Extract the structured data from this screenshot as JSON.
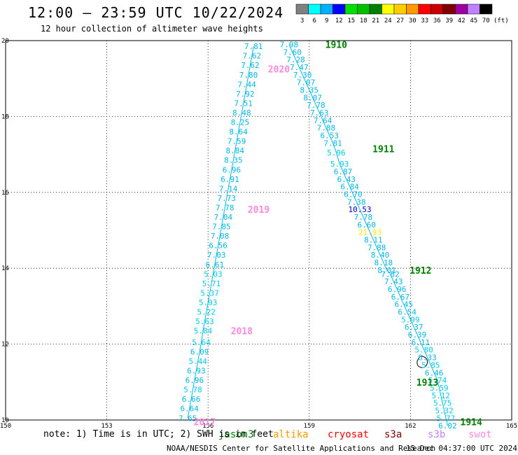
{
  "header": {
    "title": "12:00 — 23:59 UTC 10/22/2024",
    "subtitle": "12 hour collection of altimeter wave heights"
  },
  "colorbar": {
    "unit_label": "(ft)",
    "bins": [
      {
        "label": "3",
        "color": "#808080"
      },
      {
        "label": "6",
        "color": "#00ffff"
      },
      {
        "label": "9",
        "color": "#00b0ff"
      },
      {
        "label": "12",
        "color": "#0000ff"
      },
      {
        "label": "15",
        "color": "#00e000"
      },
      {
        "label": "18",
        "color": "#00c000"
      },
      {
        "label": "21",
        "color": "#008000"
      },
      {
        "label": "24",
        "color": "#ffff00"
      },
      {
        "label": "27",
        "color": "#ffcc00"
      },
      {
        "label": "30",
        "color": "#ff9900"
      },
      {
        "label": "33",
        "color": "#ff0000"
      },
      {
        "label": "36",
        "color": "#c80000"
      },
      {
        "label": "39",
        "color": "#800000"
      },
      {
        "label": "42",
        "color": "#a000a0"
      },
      {
        "label": "45",
        "color": "#c080ff"
      },
      {
        "label": "70",
        "color": "#000000"
      }
    ]
  },
  "axes": {
    "x_ticks": [
      "150",
      "153",
      "156",
      "159",
      "162",
      "165"
    ],
    "y_ticks": [
      "10",
      "12",
      "14",
      "16",
      "18",
      "20"
    ],
    "xlim": [
      150,
      165
    ],
    "ylim": [
      10,
      20
    ]
  },
  "tracks": [
    {
      "id": "2017-2020",
      "line_color": "#00b8e8",
      "points": [
        {
          "lon": 155.4,
          "lat": 10.05,
          "v": "7.65",
          "c": "#00b8e8"
        },
        {
          "lon": 155.45,
          "lat": 10.3,
          "v": "6.64",
          "c": "#00b8e8"
        },
        {
          "lon": 155.5,
          "lat": 10.55,
          "v": "6.66",
          "c": "#00b8e8"
        },
        {
          "lon": 155.55,
          "lat": 10.8,
          "v": "5.78",
          "c": "#00ccee"
        },
        {
          "lon": 155.6,
          "lat": 11.05,
          "v": "6.96",
          "c": "#00b8e8"
        },
        {
          "lon": 155.65,
          "lat": 11.3,
          "v": "6.93",
          "c": "#00b8e8"
        },
        {
          "lon": 155.7,
          "lat": 11.55,
          "v": "5.44",
          "c": "#00ccee"
        },
        {
          "lon": 155.75,
          "lat": 11.8,
          "v": "6.09",
          "c": "#00b8e8"
        },
        {
          "lon": 155.8,
          "lat": 12.05,
          "v": "5.64",
          "c": "#00ccee"
        },
        {
          "lon": 155.85,
          "lat": 12.35,
          "v": "5.84",
          "c": "#00ccee"
        },
        {
          "lon": 155.9,
          "lat": 12.6,
          "v": "5.63",
          "c": "#00ccee"
        },
        {
          "lon": 155.95,
          "lat": 12.85,
          "v": "5.22",
          "c": "#00ccee"
        },
        {
          "lon": 156.0,
          "lat": 13.1,
          "v": "5.93",
          "c": "#00ccee"
        },
        {
          "lon": 156.05,
          "lat": 13.35,
          "v": "5.37",
          "c": "#00ccee"
        },
        {
          "lon": 156.1,
          "lat": 13.6,
          "v": "5.71",
          "c": "#00ccee"
        },
        {
          "lon": 156.15,
          "lat": 13.85,
          "v": "5.03",
          "c": "#00ccee"
        },
        {
          "lon": 156.2,
          "lat": 14.1,
          "v": "6.61",
          "c": "#00b8e8"
        },
        {
          "lon": 156.25,
          "lat": 14.35,
          "v": "7.03",
          "c": "#00b8e8"
        },
        {
          "lon": 156.3,
          "lat": 14.6,
          "v": "6.56",
          "c": "#00b8e8"
        },
        {
          "lon": 156.35,
          "lat": 14.85,
          "v": "7.08",
          "c": "#00b8e8"
        },
        {
          "lon": 156.4,
          "lat": 15.1,
          "v": "7.85",
          "c": "#00b8e8"
        },
        {
          "lon": 156.45,
          "lat": 15.35,
          "v": "7.04",
          "c": "#00b8e8"
        },
        {
          "lon": 156.5,
          "lat": 15.6,
          "v": "7.78",
          "c": "#00b8e8"
        },
        {
          "lon": 156.55,
          "lat": 15.85,
          "v": "7.73",
          "c": "#00b8e8"
        },
        {
          "lon": 156.6,
          "lat": 16.1,
          "v": "7.14",
          "c": "#00b8e8"
        },
        {
          "lon": 156.65,
          "lat": 16.35,
          "v": "6.91",
          "c": "#00b8e8"
        },
        {
          "lon": 156.7,
          "lat": 16.6,
          "v": "6.96",
          "c": "#00b8e8"
        },
        {
          "lon": 156.75,
          "lat": 16.85,
          "v": "8.35",
          "c": "#00b8e8"
        },
        {
          "lon": 156.8,
          "lat": 17.1,
          "v": "8.84",
          "c": "#00b8e8"
        },
        {
          "lon": 156.85,
          "lat": 17.35,
          "v": "7.59",
          "c": "#00b8e8"
        },
        {
          "lon": 156.9,
          "lat": 17.6,
          "v": "8.64",
          "c": "#00b8e8"
        },
        {
          "lon": 156.95,
          "lat": 17.85,
          "v": "8.25",
          "c": "#00b8e8"
        },
        {
          "lon": 157.0,
          "lat": 18.1,
          "v": "8.48",
          "c": "#00b8e8"
        },
        {
          "lon": 157.05,
          "lat": 18.35,
          "v": "7.51",
          "c": "#00b8e8"
        },
        {
          "lon": 157.1,
          "lat": 18.6,
          "v": "7.92",
          "c": "#00b8e8"
        },
        {
          "lon": 157.15,
          "lat": 18.85,
          "v": "7.44",
          "c": "#00b8e8"
        },
        {
          "lon": 157.2,
          "lat": 19.1,
          "v": "7.80",
          "c": "#00b8e8"
        },
        {
          "lon": 157.25,
          "lat": 19.35,
          "v": "7.62",
          "c": "#00b8e8"
        },
        {
          "lon": 157.3,
          "lat": 19.6,
          "v": "7.62",
          "c": "#00b8e8"
        },
        {
          "lon": 157.35,
          "lat": 19.85,
          "v": "7.81",
          "c": "#00b8e8"
        }
      ]
    },
    {
      "id": "1910-1914",
      "line_color": "#00b8e8",
      "points": [
        {
          "lon": 158.4,
          "lat": 19.9,
          "v": "7.98",
          "c": "#00b8e8"
        },
        {
          "lon": 158.5,
          "lat": 19.7,
          "v": "7.60",
          "c": "#00b8e8"
        },
        {
          "lon": 158.6,
          "lat": 19.5,
          "v": "7.28",
          "c": "#00b8e8"
        },
        {
          "lon": 158.7,
          "lat": 19.3,
          "v": "7.47",
          "c": "#00b8e8"
        },
        {
          "lon": 158.8,
          "lat": 19.1,
          "v": "7.30",
          "c": "#00b8e8"
        },
        {
          "lon": 158.9,
          "lat": 18.9,
          "v": "7.07",
          "c": "#00b8e8"
        },
        {
          "lon": 159.0,
          "lat": 18.7,
          "v": "8.35",
          "c": "#00b8e8"
        },
        {
          "lon": 159.1,
          "lat": 18.5,
          "v": "8.07",
          "c": "#00b8e8"
        },
        {
          "lon": 159.2,
          "lat": 18.3,
          "v": "7.78",
          "c": "#00b8e8"
        },
        {
          "lon": 159.3,
          "lat": 18.1,
          "v": "7.63",
          "c": "#00b8e8"
        },
        {
          "lon": 159.4,
          "lat": 17.9,
          "v": "7.64",
          "c": "#00b8e8"
        },
        {
          "lon": 159.5,
          "lat": 17.7,
          "v": "7.88",
          "c": "#00b8e8"
        },
        {
          "lon": 159.6,
          "lat": 17.5,
          "v": "6.53",
          "c": "#00b8e8"
        },
        {
          "lon": 159.7,
          "lat": 17.3,
          "v": "7.81",
          "c": "#00b8e8"
        },
        {
          "lon": 159.8,
          "lat": 17.05,
          "v": "5.96",
          "c": "#00ccee"
        },
        {
          "lon": 159.9,
          "lat": 16.75,
          "v": "5.93",
          "c": "#00ccee"
        },
        {
          "lon": 160.0,
          "lat": 16.55,
          "v": "6.87",
          "c": "#00b8e8"
        },
        {
          "lon": 160.1,
          "lat": 16.35,
          "v": "6.43",
          "c": "#00b8e8"
        },
        {
          "lon": 160.2,
          "lat": 16.15,
          "v": "6.84",
          "c": "#00b8e8"
        },
        {
          "lon": 160.3,
          "lat": 15.95,
          "v": "6.70",
          "c": "#00b8e8"
        },
        {
          "lon": 160.4,
          "lat": 15.75,
          "v": "7.38",
          "c": "#00b8e8"
        },
        {
          "lon": 160.5,
          "lat": 15.55,
          "v": "10.53",
          "c": "#0000cc"
        },
        {
          "lon": 160.6,
          "lat": 15.35,
          "v": "7.78",
          "c": "#00b8e8"
        },
        {
          "lon": 160.7,
          "lat": 15.15,
          "v": "6.60",
          "c": "#00b8e8"
        },
        {
          "lon": 160.8,
          "lat": 14.95,
          "v": "21.93",
          "c": "#ffe800"
        },
        {
          "lon": 160.9,
          "lat": 14.75,
          "v": "8.11",
          "c": "#00b8e8"
        },
        {
          "lon": 161.0,
          "lat": 14.55,
          "v": "7.88",
          "c": "#00b8e8"
        },
        {
          "lon": 161.1,
          "lat": 14.35,
          "v": "8.40",
          "c": "#00b8e8"
        },
        {
          "lon": 161.2,
          "lat": 14.15,
          "v": "8.18",
          "c": "#00b8e8"
        },
        {
          "lon": 161.3,
          "lat": 13.95,
          "v": "8.01",
          "c": "#00b8e8"
        },
        {
          "lon": 161.4,
          "lat": 13.85,
          "v": "7.82",
          "c": "#00b8e8"
        },
        {
          "lon": 161.5,
          "lat": 13.65,
          "v": "7.43",
          "c": "#00b8e8"
        },
        {
          "lon": 161.6,
          "lat": 13.45,
          "v": "6.96",
          "c": "#00b8e8"
        },
        {
          "lon": 161.7,
          "lat": 13.25,
          "v": "6.67",
          "c": "#00b8e8"
        },
        {
          "lon": 161.8,
          "lat": 13.05,
          "v": "6.45",
          "c": "#00b8e8"
        },
        {
          "lon": 161.9,
          "lat": 12.85,
          "v": "6.54",
          "c": "#00b8e8"
        },
        {
          "lon": 162.0,
          "lat": 12.65,
          "v": "5.99",
          "c": "#00ccee"
        },
        {
          "lon": 162.1,
          "lat": 12.45,
          "v": "6.37",
          "c": "#00b8e8"
        },
        {
          "lon": 162.2,
          "lat": 12.25,
          "v": "6.39",
          "c": "#00b8e8"
        },
        {
          "lon": 162.3,
          "lat": 12.05,
          "v": "6.11",
          "c": "#00b8e8"
        },
        {
          "lon": 162.4,
          "lat": 11.85,
          "v": "5.80",
          "c": "#00ccee"
        },
        {
          "lon": 162.5,
          "lat": 11.65,
          "v": "6.33",
          "c": "#00b8e8"
        },
        {
          "lon": 162.6,
          "lat": 11.45,
          "v": "5.85",
          "c": "#00ccee"
        },
        {
          "lon": 162.7,
          "lat": 11.25,
          "v": "6.46",
          "c": "#00b8e8"
        },
        {
          "lon": 162.8,
          "lat": 11.05,
          "v": "5.74",
          "c": "#00ccee"
        },
        {
          "lon": 162.85,
          "lat": 10.85,
          "v": "5.59",
          "c": "#00ccee"
        },
        {
          "lon": 162.9,
          "lat": 10.65,
          "v": "5.12",
          "c": "#00ccee"
        },
        {
          "lon": 162.95,
          "lat": 10.45,
          "v": "5.75",
          "c": "#00ccee"
        },
        {
          "lon": 163.0,
          "lat": 10.25,
          "v": "5.32",
          "c": "#00ccee"
        },
        {
          "lon": 163.05,
          "lat": 10.05,
          "v": "5.77",
          "c": "#00ccee"
        },
        {
          "lon": 163.1,
          "lat": 9.85,
          "v": "6.02",
          "c": "#00b8e8"
        }
      ]
    }
  ],
  "time_labels": [
    {
      "text": "2020",
      "lon": 158.1,
      "lat": 19.25,
      "color": "#ff88dd"
    },
    {
      "text": "2019",
      "lon": 157.5,
      "lat": 15.55,
      "color": "#ff88dd"
    },
    {
      "text": "2018",
      "lon": 157.0,
      "lat": 12.35,
      "color": "#ff88dd"
    },
    {
      "text": "2017",
      "lon": 155.9,
      "lat": 9.95,
      "color": "#ff88dd"
    },
    {
      "text": "1910",
      "lon": 159.8,
      "lat": 19.9,
      "color": "#008000"
    },
    {
      "text": "1911",
      "lon": 161.2,
      "lat": 17.15,
      "color": "#008000"
    },
    {
      "text": "1912",
      "lon": 162.3,
      "lat": 13.95,
      "color": "#008000"
    },
    {
      "text": "1913",
      "lon": 162.5,
      "lat": 11.0,
      "color": "#008000"
    },
    {
      "text": "1914",
      "lon": 163.8,
      "lat": 9.95,
      "color": "#008000"
    }
  ],
  "legend": [
    {
      "label": "jason3",
      "color": "#008000"
    },
    {
      "label": "altika",
      "color": "#ff9900"
    },
    {
      "label": "cryosat",
      "color": "#ff0000"
    },
    {
      "label": "s3a",
      "color": "#800000"
    },
    {
      "label": "s3b",
      "color": "#c080ff"
    },
    {
      "label": "swot",
      "color": "#ff88dd"
    }
  ],
  "footer": {
    "note": "note: 1) Time is in UTC; 2) SWH is in feet",
    "credit": "NOAA/NESDIS Center for Satellite Applications and Research",
    "stamp": "15 Dec 04:37:00 UTC 2024"
  }
}
